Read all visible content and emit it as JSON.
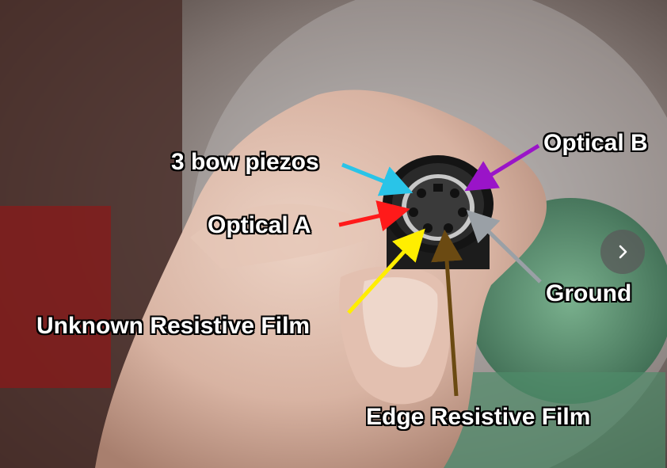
{
  "image": {
    "labels": {
      "bow_piezos": "3 bow piezos",
      "optical_a": "Optical A",
      "optical_b": "Optical B",
      "ground": "Ground",
      "unknown_film": "Unknown Resistive Film",
      "edge_film": "Edge Resistive Film"
    },
    "arrow_colors": {
      "bow_piezos": "#29c4e8",
      "optical_a": "#ff1a1a",
      "optical_b": "#9a14c8",
      "ground": "#9aa0a6",
      "unknown_film": "#ffee00",
      "edge_film": "#6b4a12"
    }
  },
  "carousel": {
    "next_icon": "chevron-right-icon"
  }
}
